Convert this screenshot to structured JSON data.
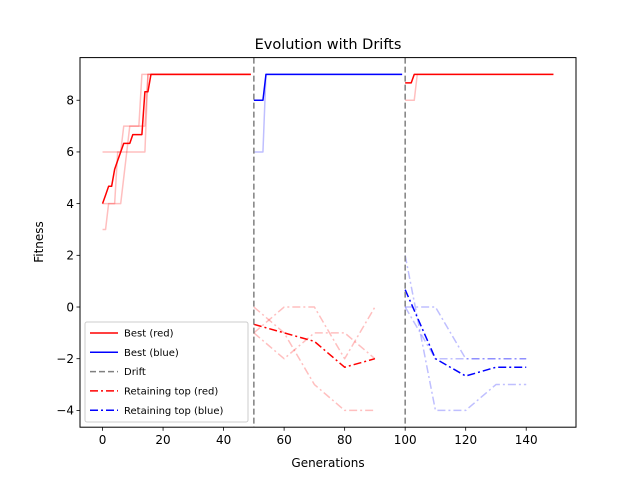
{
  "chart_data": {
    "type": "line",
    "title": "Evolution with Drifts",
    "xlabel": "Generations",
    "ylabel": "Fitness",
    "xlim": [
      -7.45,
      156.45
    ],
    "ylim": [
      -4.65,
      9.65
    ],
    "xticks": [
      0,
      20,
      40,
      60,
      80,
      100,
      120,
      140
    ],
    "yticks": [
      -4,
      -2,
      0,
      2,
      4,
      6,
      8
    ],
    "grid": false,
    "legend_position": "lower-left",
    "drifts": [
      50,
      100
    ],
    "legend": [
      {
        "label": "Best (red)",
        "color": "#ff0000",
        "dash": "solid"
      },
      {
        "label": "Best (blue)",
        "color": "#0000ff",
        "dash": "solid"
      },
      {
        "label": "Drift",
        "color": "#808080",
        "dash": "dashed"
      },
      {
        "label": "Retaining top (red)",
        "color": "#ff0000",
        "dash": "dashdot"
      },
      {
        "label": "Retaining top (blue)",
        "color": "#0000ff",
        "dash": "dashdot"
      }
    ],
    "series": [
      {
        "name": "Best (red)",
        "color": "#ff0000",
        "dash": "solid",
        "opacity": 1,
        "x": [
          0,
          1,
          2,
          3,
          4,
          5,
          6,
          7,
          8,
          9,
          10,
          11,
          12,
          13,
          14,
          15,
          16,
          20,
          30,
          40,
          49
        ],
        "y": [
          4,
          4.33,
          4.67,
          4.67,
          5.33,
          5.67,
          6,
          6.33,
          6.33,
          6.33,
          6.67,
          6.67,
          6.67,
          6.67,
          8.33,
          8.33,
          9,
          9,
          9,
          9,
          9
        ]
      },
      {
        "name": "",
        "color": "#ff0000",
        "dash": "solid",
        "opacity": 0.25,
        "x": [
          0,
          4,
          14,
          15,
          49
        ],
        "y": [
          6,
          6,
          6,
          9,
          9
        ]
      },
      {
        "name": "",
        "color": "#ff0000",
        "dash": "solid",
        "opacity": 0.25,
        "x": [
          0,
          1,
          2,
          3,
          4,
          5,
          6,
          7,
          14,
          15,
          49
        ],
        "y": [
          3,
          3,
          4,
          4,
          4,
          6,
          6,
          7,
          7,
          9,
          9
        ]
      },
      {
        "name": "",
        "color": "#ff0000",
        "dash": "solid",
        "opacity": 0.25,
        "x": [
          0,
          5,
          6,
          8,
          9,
          12,
          13,
          16,
          49
        ],
        "y": [
          4,
          4,
          4,
          6,
          7,
          7,
          9,
          9,
          9
        ]
      },
      {
        "name": "Best (blue)",
        "color": "#0000ff",
        "dash": "solid",
        "opacity": 1,
        "x": [
          50,
          51,
          52,
          53,
          54,
          99
        ],
        "y": [
          8,
          8,
          8,
          8,
          9,
          9
        ]
      },
      {
        "name": "",
        "color": "#0000ff",
        "dash": "solid",
        "opacity": 0.25,
        "x": [
          50,
          51,
          52,
          53,
          54,
          99
        ],
        "y": [
          6,
          6,
          6,
          6,
          9,
          9
        ]
      },
      {
        "name": "Best (red)",
        "color": "#ff0000",
        "dash": "solid",
        "opacity": 1,
        "x": [
          100,
          101,
          102,
          103,
          104,
          149
        ],
        "y": [
          8.67,
          8.67,
          8.67,
          9,
          9,
          9
        ]
      },
      {
        "name": "",
        "color": "#ff0000",
        "dash": "solid",
        "opacity": 0.25,
        "x": [
          100,
          103,
          104,
          149
        ],
        "y": [
          8,
          8,
          9,
          9
        ]
      },
      {
        "name": "Retaining top (red)",
        "color": "#ff0000",
        "dash": "dashdot",
        "opacity": 1,
        "x": [
          50,
          60,
          70,
          80,
          90
        ],
        "y": [
          -0.67,
          -1,
          -1.33,
          -2.33,
          -2
        ]
      },
      {
        "name": "",
        "color": "#ff0000",
        "dash": "dashdot",
        "opacity": 0.25,
        "x": [
          50,
          60,
          70,
          80,
          90
        ],
        "y": [
          -1,
          -2,
          -1,
          -1,
          -2
        ]
      },
      {
        "name": "",
        "color": "#ff0000",
        "dash": "dashdot",
        "opacity": 0.25,
        "x": [
          50,
          60,
          70,
          80,
          90
        ],
        "y": [
          -1,
          0,
          0,
          -2,
          0
        ]
      },
      {
        "name": "",
        "color": "#ff0000",
        "dash": "dashdot",
        "opacity": 0.25,
        "x": [
          50,
          60,
          70,
          80,
          90
        ],
        "y": [
          0,
          -1,
          -3,
          -4,
          -4
        ]
      },
      {
        "name": "Retaining top (blue)",
        "color": "#0000ff",
        "dash": "dashdot",
        "opacity": 1,
        "x": [
          100,
          110,
          120,
          130,
          140
        ],
        "y": [
          0.67,
          -2,
          -2.67,
          -2.33,
          -2.33
        ]
      },
      {
        "name": "",
        "color": "#0000ff",
        "dash": "dashdot",
        "opacity": 0.25,
        "x": [
          100,
          110,
          120,
          130,
          140
        ],
        "y": [
          2,
          -4,
          -4,
          -3,
          -3
        ]
      },
      {
        "name": "",
        "color": "#0000ff",
        "dash": "dashdot",
        "opacity": 0.25,
        "x": [
          100,
          110,
          120,
          130,
          140
        ],
        "y": [
          0,
          0,
          -2,
          -2,
          -2
        ]
      },
      {
        "name": "",
        "color": "#0000ff",
        "dash": "dashdot",
        "opacity": 0.25,
        "x": [
          100,
          110,
          120,
          130,
          140
        ],
        "y": [
          0,
          -2,
          -2,
          -2,
          -2
        ]
      }
    ]
  }
}
